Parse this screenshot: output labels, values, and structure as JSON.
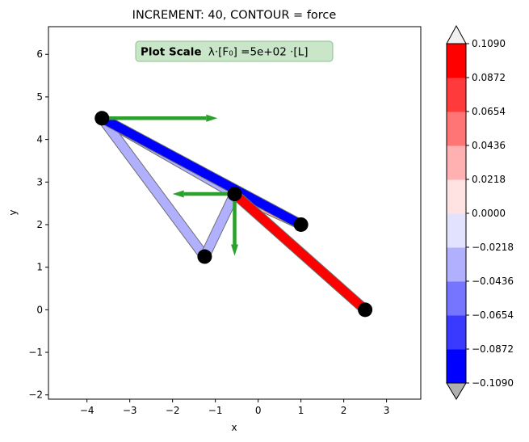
{
  "chart_data": {
    "type": "scatter",
    "title": "INCREMENT: 40, CONTOUR = force",
    "xlabel": "x",
    "ylabel": "y",
    "xlim": [
      -4.9,
      3.8
    ],
    "ylim": [
      -2.1,
      6.65
    ],
    "xticks": [
      -4,
      -3,
      -2,
      -1,
      0,
      1,
      2,
      3
    ],
    "yticks": [
      -2,
      -1,
      0,
      1,
      2,
      3,
      4,
      5,
      6
    ],
    "xtick_labels": [
      "−4",
      "−3",
      "−2",
      "−1",
      "0",
      "1",
      "2",
      "3"
    ],
    "ytick_labels": [
      "−2",
      "−1",
      "0",
      "1",
      "2",
      "3",
      "4",
      "5",
      "6"
    ],
    "grid": false,
    "annotation": {
      "bold": "Plot Scale",
      "formula": "λ·[F₀] =5e+02 ·[L]"
    },
    "nodes": [
      {
        "x": -3.65,
        "y": 4.5
      },
      {
        "x": -0.55,
        "y": 2.72
      },
      {
        "x": 1.0,
        "y": 2.0
      },
      {
        "x": -1.25,
        "y": 1.25
      },
      {
        "x": 2.5,
        "y": 0.0
      }
    ],
    "elements": [
      {
        "from": 0,
        "to": 1,
        "force": -0.035
      },
      {
        "from": 1,
        "to": 2,
        "force": 0.04
      },
      {
        "from": 0,
        "to": 3,
        "force": -0.035
      },
      {
        "from": 3,
        "to": 1,
        "force": -0.035
      },
      {
        "from": 0,
        "to": 2,
        "force": -0.1
      },
      {
        "from": 1,
        "to": 4,
        "force": 0.1
      }
    ],
    "forces": [
      {
        "x": -3.65,
        "y": 4.5,
        "dx": 2.7,
        "dy": 0
      },
      {
        "x": -0.55,
        "y": 2.72,
        "dx": -1.45,
        "dy": 0
      },
      {
        "x": -0.55,
        "y": 2.72,
        "dx": 0,
        "dy": -1.45
      }
    ],
    "colorbar": {
      "levels": [
        -0.109,
        -0.0872,
        -0.0654,
        -0.0436,
        -0.0218,
        0.0,
        0.0218,
        0.0436,
        0.0654,
        0.0872,
        0.109
      ],
      "tick_labels": [
        "−0.1090",
        "−0.0872",
        "−0.0654",
        "−0.0436",
        "−0.0218",
        "0.0000",
        "0.0218",
        "0.0436",
        "0.0654",
        "0.0872",
        "0.1090"
      ],
      "colors": [
        "#0000ff",
        "#3a3aff",
        "#7575ff",
        "#b0b0ff",
        "#e2e2ff",
        "#ffe2e2",
        "#ffb0b0",
        "#ff7575",
        "#ff3a3a",
        "#ff0000"
      ],
      "under_color": "#b0b0b0",
      "over_color": "#f0f0f0"
    },
    "arrow_color": "#2ca02c",
    "node_color": "#000000"
  }
}
